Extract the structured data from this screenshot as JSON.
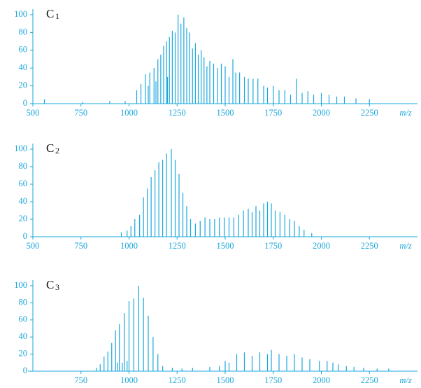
{
  "chart_data": [
    {
      "type": "stem",
      "label": "C",
      "label_sub": "1",
      "x_label": "m/z",
      "color": "#1aa7dc",
      "xlim": [
        500,
        2500
      ],
      "ylim": [
        0,
        100
      ],
      "xticks": [
        500,
        750,
        1000,
        1250,
        1500,
        1750,
        2000,
        2250
      ],
      "yticks": [
        0,
        20,
        40,
        60,
        80,
        100
      ],
      "x": [
        560,
        760,
        900,
        980,
        1040,
        1062,
        1085,
        1100,
        1108,
        1130,
        1140,
        1150,
        1165,
        1180,
        1195,
        1200,
        1210,
        1225,
        1240,
        1255,
        1270,
        1285,
        1300,
        1315,
        1330,
        1345,
        1360,
        1375,
        1390,
        1405,
        1420,
        1440,
        1460,
        1480,
        1500,
        1520,
        1540,
        1555,
        1575,
        1600,
        1620,
        1645,
        1670,
        1700,
        1720,
        1750,
        1780,
        1810,
        1840,
        1870,
        1900,
        1930,
        1960,
        2000,
        2040,
        2080,
        2120,
        2180,
        2250
      ],
      "values": [
        5,
        2,
        3,
        3,
        15,
        22,
        33,
        20,
        35,
        40,
        25,
        50,
        55,
        65,
        70,
        30,
        75,
        82,
        80,
        100,
        90,
        97,
        85,
        80,
        62,
        68,
        55,
        60,
        52,
        42,
        48,
        45,
        40,
        45,
        42,
        30,
        50,
        35,
        35,
        30,
        28,
        28,
        28,
        20,
        18,
        20,
        15,
        15,
        10,
        28,
        12,
        14,
        10,
        12,
        10,
        8,
        8,
        6,
        5
      ]
    },
    {
      "type": "stem",
      "label": "C",
      "label_sub": "2",
      "x_label": "m/z",
      "color": "#1aa7dc",
      "xlim": [
        500,
        2500
      ],
      "ylim": [
        0,
        100
      ],
      "xticks": [
        500,
        750,
        1000,
        1250,
        1500,
        1750,
        2000,
        2250
      ],
      "yticks": [
        0,
        20,
        40,
        60,
        80,
        100
      ],
      "x": [
        960,
        990,
        1010,
        1030,
        1055,
        1075,
        1095,
        1115,
        1135,
        1155,
        1175,
        1195,
        1220,
        1240,
        1260,
        1280,
        1300,
        1320,
        1345,
        1370,
        1395,
        1420,
        1445,
        1470,
        1495,
        1520,
        1545,
        1570,
        1595,
        1620,
        1640,
        1660,
        1680,
        1700,
        1720,
        1740,
        1760,
        1785,
        1810,
        1835,
        1860,
        1885,
        1910,
        1950
      ],
      "values": [
        5,
        7,
        12,
        20,
        25,
        45,
        55,
        68,
        76,
        85,
        88,
        95,
        100,
        88,
        72,
        50,
        35,
        20,
        15,
        18,
        22,
        20,
        20,
        22,
        22,
        22,
        22,
        25,
        30,
        32,
        28,
        35,
        30,
        38,
        40,
        38,
        30,
        28,
        25,
        20,
        18,
        12,
        8,
        4
      ]
    },
    {
      "type": "stem",
      "label": "C",
      "label_sub": "3",
      "x_label": "m/z",
      "color": "#1aa7dc",
      "xlim": [
        500,
        2500
      ],
      "ylim": [
        0,
        100
      ],
      "xticks": [
        750,
        1000,
        1250,
        1500,
        1750,
        2000,
        2250
      ],
      "yticks": [
        0,
        20,
        40,
        60,
        80,
        100
      ],
      "x": [
        830,
        850,
        870,
        890,
        910,
        930,
        940,
        950,
        965,
        975,
        990,
        1000,
        1025,
        1050,
        1075,
        1100,
        1125,
        1150,
        1175,
        1225,
        1275,
        1330,
        1420,
        1470,
        1500,
        1520,
        1560,
        1600,
        1640,
        1680,
        1720,
        1740,
        1780,
        1820,
        1860,
        1900,
        1940,
        1990,
        2030,
        2060,
        2090,
        2130,
        2170,
        2220,
        2290,
        2350
      ],
      "values": [
        4,
        8,
        17,
        23,
        33,
        48,
        10,
        55,
        10,
        68,
        12,
        82,
        85,
        100,
        86,
        65,
        40,
        20,
        6,
        4,
        3,
        4,
        5,
        6,
        12,
        10,
        20,
        22,
        18,
        22,
        20,
        25,
        20,
        18,
        20,
        16,
        14,
        12,
        12,
        10,
        8,
        6,
        5,
        4,
        3,
        3
      ]
    }
  ]
}
